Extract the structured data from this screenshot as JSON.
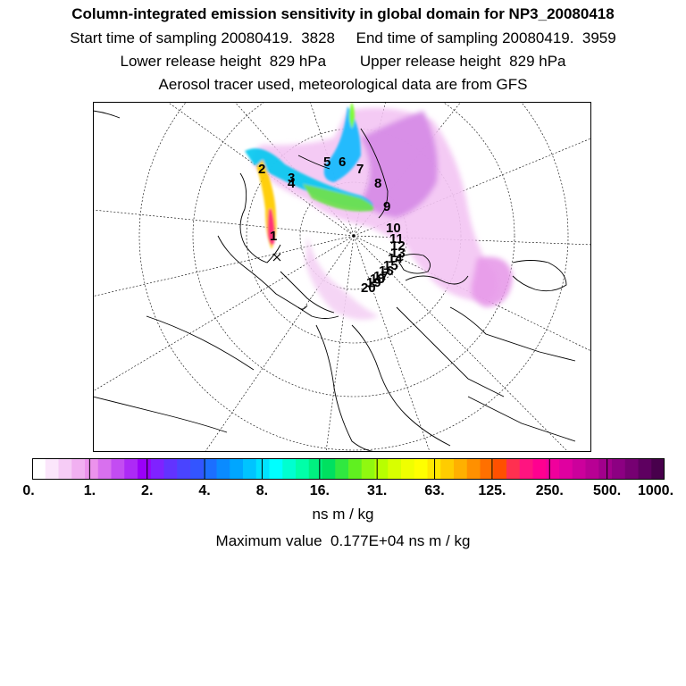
{
  "header": {
    "title": "Column-integrated emission sensitivity in global domain for NP3_20080418",
    "sampling": "Start time of sampling 20080419.  3828     End time of sampling 20080419.  3959",
    "release": "Lower release height  829 hPa        Upper release height  829 hPa",
    "note": "Aerosol tracer used, meteorological data are from GFS"
  },
  "map": {
    "day_labels": [
      "1",
      "2",
      "3",
      "4",
      "5",
      "6",
      "7",
      "8",
      "9",
      "10",
      "11",
      "12",
      "13",
      "14",
      "15",
      "16",
      "17",
      "18",
      "19",
      "20"
    ]
  },
  "colorbar": {
    "colors": [
      "#ffffff",
      "#fbe6fb",
      "#f6ccf6",
      "#f1b0f1",
      "#ec92ec",
      "#d870ee",
      "#c34cf2",
      "#ad2af6",
      "#9a00f8",
      "#7f22ff",
      "#6233ff",
      "#4a44ff",
      "#3355ff",
      "#1c6fff",
      "#0a8bff",
      "#00a6ff",
      "#00c4ff",
      "#00e2ff",
      "#00ffff",
      "#00ffd0",
      "#00ffa8",
      "#00f080",
      "#00e060",
      "#30e840",
      "#60f020",
      "#90f810",
      "#b8ff00",
      "#d8ff00",
      "#f0ff00",
      "#ffff00",
      "#ffe800",
      "#ffcc00",
      "#ffb000",
      "#ff9000",
      "#ff7000",
      "#ff5000",
      "#ff3050",
      "#ff1480",
      "#ff0090",
      "#f0009c",
      "#e000a0",
      "#cc009c",
      "#b80094",
      "#a2008c",
      "#8c0082",
      "#760072",
      "#5e0060",
      "#48004c"
    ],
    "labels": [
      "0.",
      "1.",
      "2.",
      "4.",
      "8.",
      "16.",
      "31.",
      "63.",
      "125.",
      "250.",
      "500.",
      "1000."
    ],
    "units": "ns m / kg"
  },
  "max_value": "Maximum value  0.177E+04 ns m / kg"
}
